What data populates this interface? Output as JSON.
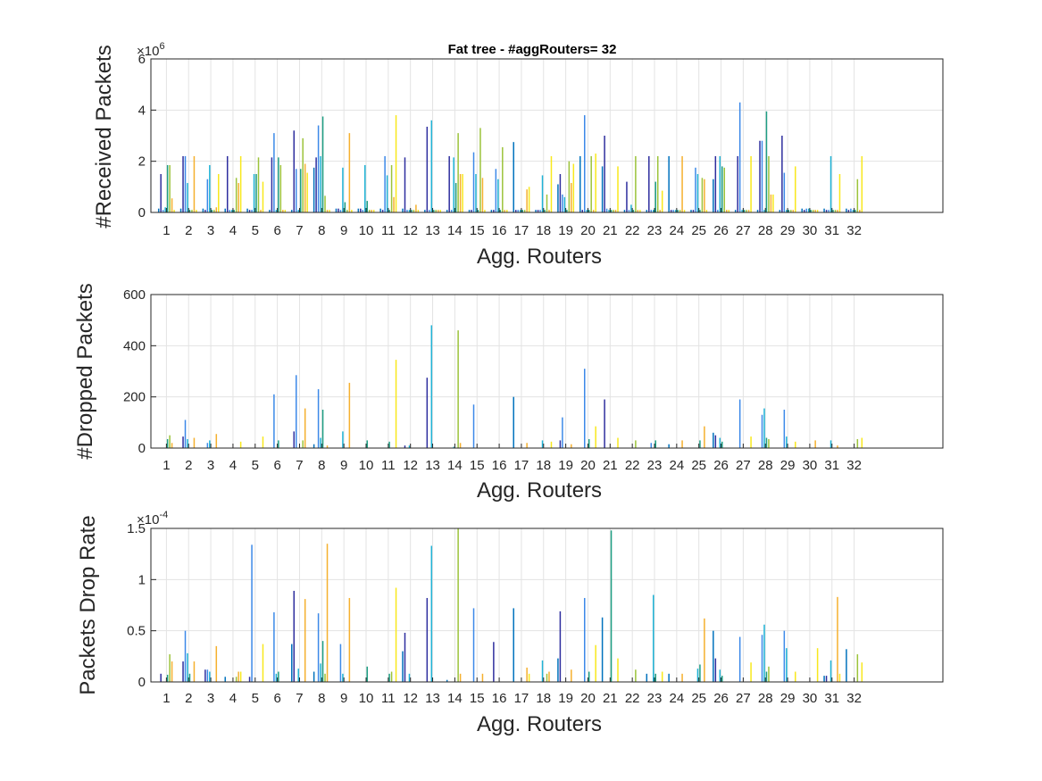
{
  "figure": {
    "title": "Fat tree -  #aggRouters= 32",
    "series_colors": [
      "#0072BD",
      "#2E2E9E",
      "#3C89E8",
      "#1FB3D6",
      "#1E9E83",
      "#9CC33A",
      "#F5B02E",
      "#F8E81C"
    ]
  },
  "chart_data": [
    {
      "type": "bar",
      "title": "Fat tree -  #aggRouters= 32",
      "xlabel": "Agg. Routers",
      "ylabel": "#Received Packets",
      "exponent_base": "×10",
      "exponent_power": "6",
      "categories": [
        "1",
        "2",
        "3",
        "4",
        "5",
        "6",
        "7",
        "8",
        "9",
        "10",
        "11",
        "12",
        "13",
        "14",
        "15",
        "16",
        "17",
        "18",
        "19",
        "20",
        "21",
        "22",
        "23",
        "24",
        "25",
        "26",
        "27",
        "28",
        "29",
        "30",
        "31",
        "32"
      ],
      "xlim": [
        0.3,
        36
      ],
      "ylim": [
        0,
        6
      ],
      "yticks": [
        0,
        2,
        4,
        6
      ],
      "ytick_labels": [
        "0",
        "2",
        "4",
        "6"
      ],
      "grid": true,
      "bars": [
        [
          0.15,
          1.5,
          0.1,
          0.2,
          1.85,
          1.85,
          0.55,
          0.1
        ],
        [
          0.15,
          2.2,
          2.2,
          1.15,
          0.1,
          0.1,
          2.2,
          0.1
        ],
        [
          0.15,
          0.1,
          1.3,
          1.85,
          0.1,
          0.1,
          0.2,
          1.5
        ],
        [
          0.15,
          2.2,
          0.1,
          0.1,
          0.1,
          1.35,
          1.15,
          2.2
        ],
        [
          0.15,
          0.1,
          0.1,
          1.5,
          1.5,
          2.15,
          0.1,
          1.2
        ],
        [
          0.1,
          2.15,
          3.1,
          0.1,
          2.15,
          1.85,
          0.1,
          0.1
        ],
        [
          0.1,
          3.2,
          1.7,
          0.1,
          1.7,
          2.9,
          1.9,
          1.55
        ],
        [
          1.75,
          2.15,
          3.4,
          2.2,
          3.75,
          0.65,
          0.1,
          0.1
        ],
        [
          0.15,
          0.15,
          0.1,
          1.75,
          0.4,
          0.1,
          3.1,
          0.1
        ],
        [
          0.15,
          0.15,
          0.1,
          1.85,
          0.45,
          0.1,
          0.1,
          0.1
        ],
        [
          0.15,
          0.1,
          2.2,
          1.45,
          0.1,
          1.85,
          0.6,
          3.8
        ],
        [
          0.15,
          2.15,
          0.1,
          0.1,
          0.1,
          0.1,
          0.3,
          0.1
        ],
        [
          0.1,
          3.35,
          0.1,
          3.6,
          0.1,
          0.1,
          0.1,
          0.1
        ],
        [
          0.1,
          2.2,
          0.1,
          2.15,
          1.15,
          3.1,
          1.5,
          1.5
        ],
        [
          0.1,
          0.1,
          2.35,
          1.5,
          0.1,
          3.3,
          1.35,
          0.1
        ],
        [
          0.1,
          0.1,
          1.7,
          1.3,
          0.1,
          2.55,
          0.1,
          0.1
        ],
        [
          2.75,
          0.1,
          0.1,
          0.1,
          0.1,
          0.1,
          0.9,
          1.0
        ],
        [
          0.1,
          0.1,
          0.1,
          1.45,
          0.1,
          0.7,
          0.1,
          2.2
        ],
        [
          1.1,
          1.5,
          0.7,
          0.6,
          0.1,
          2.0,
          1.15,
          1.9
        ],
        [
          2.2,
          0.1,
          3.8,
          0.1,
          0.1,
          2.2,
          0.1,
          2.3
        ],
        [
          1.8,
          3.0,
          0.15,
          0.1,
          0.1,
          0.1,
          0.1,
          1.8
        ],
        [
          0.1,
          1.2,
          0.1,
          0.3,
          0.1,
          2.2,
          0.1,
          0.1
        ],
        [
          0.1,
          2.2,
          0.1,
          0.1,
          1.2,
          2.2,
          0.1,
          0.85
        ],
        [
          2.2,
          0.1,
          0.1,
          0.1,
          0.1,
          0.1,
          2.2,
          0.1
        ],
        [
          0.1,
          0.1,
          1.75,
          1.5,
          0.1,
          1.35,
          1.3,
          0.1
        ],
        [
          1.3,
          2.2,
          0.1,
          2.2,
          1.8,
          1.75,
          0.1,
          0.1
        ],
        [
          0.1,
          2.2,
          4.3,
          0.1,
          0.1,
          0.1,
          0.1,
          2.2
        ],
        [
          0.1,
          2.8,
          2.8,
          0.1,
          3.95,
          2.2,
          0.7,
          0.7
        ],
        [
          0.1,
          3.0,
          1.55,
          0.1,
          0.1,
          0.1,
          0.1,
          1.8
        ],
        [
          0.15,
          0.1,
          0.15,
          0.15,
          0.1,
          0.1,
          0.1,
          0.1
        ],
        [
          0.15,
          0.1,
          0.1,
          2.2,
          0.1,
          0.1,
          0.1,
          1.5
        ],
        [
          0.15,
          0.1,
          0.15,
          0.1,
          0.1,
          1.3,
          0.1,
          2.2
        ]
      ]
    },
    {
      "type": "bar",
      "title": "",
      "xlabel": "Agg. Routers",
      "ylabel": "#Dropped Packets",
      "exponent_base": "",
      "exponent_power": "",
      "categories": [
        "1",
        "2",
        "3",
        "4",
        "5",
        "6",
        "7",
        "8",
        "9",
        "10",
        "11",
        "12",
        "13",
        "14",
        "15",
        "16",
        "17",
        "18",
        "19",
        "20",
        "21",
        "22",
        "23",
        "24",
        "25",
        "26",
        "27",
        "28",
        "29",
        "30",
        "31",
        "32"
      ],
      "xlim": [
        0.3,
        36
      ],
      "ylim": [
        0,
        600
      ],
      "yticks": [
        0,
        200,
        400,
        600
      ],
      "ytick_labels": [
        "0",
        "200",
        "400",
        "600"
      ],
      "grid": true,
      "bars": [
        [
          0,
          0,
          0,
          0,
          35,
          50,
          20,
          0
        ],
        [
          0,
          45,
          110,
          35,
          0,
          0,
          40,
          0
        ],
        [
          0,
          0,
          20,
          30,
          0,
          0,
          55,
          0
        ],
        [
          0,
          0,
          0,
          0,
          0,
          0,
          0,
          25
        ],
        [
          0,
          0,
          0,
          0,
          0,
          0,
          0,
          45
        ],
        [
          0,
          0,
          210,
          0,
          30,
          0,
          0,
          0
        ],
        [
          0,
          65,
          285,
          0,
          0,
          30,
          155,
          0
        ],
        [
          15,
          0,
          230,
          40,
          150,
          0,
          10,
          0
        ],
        [
          0,
          0,
          0,
          65,
          0,
          0,
          255,
          0
        ],
        [
          0,
          0,
          0,
          0,
          30,
          0,
          0,
          0
        ],
        [
          0,
          0,
          0,
          0,
          25,
          0,
          0,
          345
        ],
        [
          0,
          10,
          0,
          10,
          0,
          0,
          0,
          0
        ],
        [
          0,
          275,
          0,
          480,
          0,
          0,
          0,
          0
        ],
        [
          0,
          0,
          0,
          5,
          0,
          460,
          20,
          0
        ],
        [
          0,
          0,
          170,
          0,
          0,
          0,
          0,
          0
        ],
        [
          0,
          0,
          0,
          0,
          0,
          0,
          0,
          0
        ],
        [
          200,
          0,
          0,
          0,
          0,
          0,
          20,
          0
        ],
        [
          0,
          0,
          0,
          30,
          0,
          0,
          0,
          25
        ],
        [
          0,
          30,
          120,
          0,
          0,
          0,
          15,
          0
        ],
        [
          0,
          0,
          310,
          0,
          35,
          0,
          0,
          85
        ],
        [
          0,
          190,
          0,
          0,
          0,
          0,
          0,
          40
        ],
        [
          0,
          0,
          0,
          0,
          0,
          30,
          0,
          0
        ],
        [
          0,
          0,
          20,
          0,
          30,
          0,
          0,
          0
        ],
        [
          15,
          0,
          0,
          0,
          0,
          0,
          30,
          0
        ],
        [
          0,
          0,
          0,
          0,
          30,
          0,
          85,
          0
        ],
        [
          60,
          50,
          0,
          40,
          25,
          0,
          0,
          0
        ],
        [
          0,
          0,
          190,
          0,
          0,
          0,
          0,
          45
        ],
        [
          0,
          0,
          130,
          155,
          40,
          35,
          0,
          0
        ],
        [
          0,
          0,
          150,
          45,
          0,
          0,
          0,
          25
        ],
        [
          0,
          0,
          0,
          0,
          0,
          0,
          30,
          0
        ],
        [
          0,
          0,
          0,
          30,
          0,
          0,
          10,
          0
        ],
        [
          0,
          0,
          0,
          0,
          0,
          35,
          0,
          40
        ]
      ]
    },
    {
      "type": "bar",
      "title": "",
      "xlabel": "Agg. Routers",
      "ylabel": "Packets Drop Rate",
      "exponent_base": "×10",
      "exponent_power": "-4",
      "categories": [
        "1",
        "2",
        "3",
        "4",
        "5",
        "6",
        "7",
        "8",
        "9",
        "10",
        "11",
        "12",
        "13",
        "14",
        "15",
        "16",
        "17",
        "18",
        "19",
        "20",
        "21",
        "22",
        "23",
        "24",
        "25",
        "26",
        "27",
        "28",
        "29",
        "30",
        "31",
        "32"
      ],
      "xlim": [
        0.3,
        36
      ],
      "ylim": [
        0,
        1.5
      ],
      "yticks": [
        0,
        0.5,
        1,
        1.5
      ],
      "ytick_labels": [
        "0",
        "0.5",
        "1",
        "1.5"
      ],
      "grid": true,
      "bars": [
        [
          0,
          0.08,
          0,
          0,
          0.07,
          0.27,
          0.2,
          0
        ],
        [
          0,
          0.2,
          0.5,
          0.28,
          0.08,
          0,
          0.2,
          0
        ],
        [
          0,
          0.12,
          0.12,
          0.1,
          0,
          0,
          0.35,
          0
        ],
        [
          0.05,
          0,
          0,
          0,
          0,
          0.05,
          0.1,
          0.1
        ],
        [
          0,
          0.05,
          1.34,
          0,
          0,
          0,
          0,
          0.37
        ],
        [
          0,
          0,
          0.68,
          0.08,
          0.1,
          0,
          0,
          0
        ],
        [
          0.37,
          0.89,
          0,
          0.13,
          0,
          0,
          0.81,
          0
        ],
        [
          0.1,
          0,
          0.67,
          0.18,
          0.4,
          0.08,
          1.35,
          0
        ],
        [
          0,
          0,
          0.37,
          0.08,
          0,
          0,
          0.82,
          0
        ],
        [
          0,
          0,
          0,
          0,
          0.15,
          0,
          0,
          0
        ],
        [
          0,
          0,
          0,
          0,
          0.08,
          0.1,
          0,
          0.92
        ],
        [
          0.3,
          0.48,
          0,
          0.08,
          0,
          0,
          0,
          0
        ],
        [
          0,
          0.82,
          0,
          1.33,
          0,
          0,
          0,
          0
        ],
        [
          0.02,
          0,
          0,
          0,
          0,
          1.5,
          0.08,
          0
        ],
        [
          0,
          0,
          0.72,
          0,
          0,
          0,
          0.08,
          0
        ],
        [
          0,
          0.39,
          0,
          0,
          0,
          0,
          0,
          0
        ],
        [
          0.72,
          0,
          0,
          0,
          0,
          0,
          0.14,
          0.08
        ],
        [
          0,
          0,
          0,
          0.21,
          0,
          0.08,
          0.1,
          0
        ],
        [
          0.23,
          0.69,
          0,
          0,
          0,
          0,
          0.12,
          0
        ],
        [
          0,
          0,
          0.82,
          0,
          0.1,
          0,
          0,
          0.36
        ],
        [
          0.63,
          0,
          0,
          0,
          1.48,
          0,
          0,
          0.23
        ],
        [
          0,
          0,
          0,
          0,
          0,
          0.12,
          0,
          0
        ],
        [
          0.08,
          0,
          0,
          0.85,
          0.08,
          0,
          0,
          0.1
        ],
        [
          0.08,
          0,
          0,
          0,
          0,
          0,
          0.08,
          0
        ],
        [
          0,
          0,
          0,
          0.13,
          0.17,
          0,
          0.62,
          0
        ],
        [
          0.5,
          0.23,
          0,
          0.12,
          0.06,
          0,
          0,
          0
        ],
        [
          0,
          0,
          0.44,
          0,
          0,
          0,
          0,
          0.19
        ],
        [
          0,
          0,
          0.46,
          0.56,
          0.1,
          0.15,
          0,
          0
        ],
        [
          0,
          0,
          0.5,
          0.33,
          0,
          0,
          0,
          0.1
        ],
        [
          0,
          0,
          0,
          0,
          0,
          0,
          0,
          0.33
        ],
        [
          0.06,
          0.06,
          0,
          0.21,
          0,
          0,
          0.83,
          0.08
        ],
        [
          0.32,
          0,
          0,
          0,
          0,
          0.27,
          0,
          0.19
        ]
      ]
    }
  ]
}
